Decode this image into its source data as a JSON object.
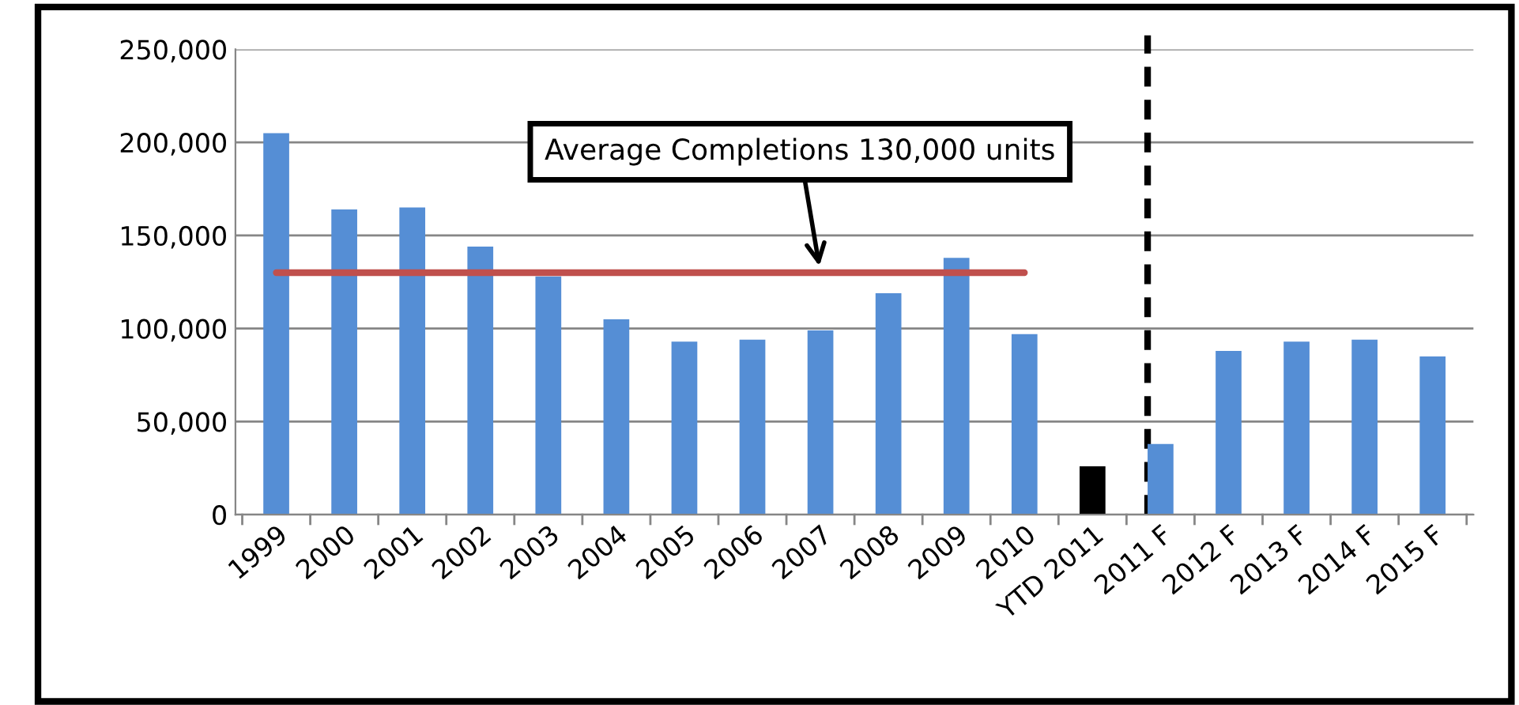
{
  "chart_data": {
    "type": "bar",
    "categories": [
      "1999",
      "2000",
      "2001",
      "2002",
      "2003",
      "2004",
      "2005",
      "2006",
      "2007",
      "2008",
      "2009",
      "2010",
      "YTD 2011",
      "2011 F",
      "2012 F",
      "2013 F",
      "2014 F",
      "2015 F"
    ],
    "series": [
      {
        "colors": [
          "#558ed5",
          "#558ed5",
          "#558ed5",
          "#558ed5",
          "#558ed5",
          "#558ed5",
          "#558ed5",
          "#558ed5",
          "#558ed5",
          "#558ed5",
          "#558ed5",
          "#558ed5",
          "#000000",
          "#558ed5",
          "#558ed5",
          "#558ed5",
          "#558ed5",
          "#558ed5"
        ],
        "values": [
          205000,
          164000,
          165000,
          144000,
          128000,
          105000,
          93000,
          94000,
          99000,
          119000,
          138000,
          97000,
          26000,
          38000,
          88000,
          93000,
          94000,
          85000
        ]
      },
      {
        "type": "line",
        "color": "#c0504d",
        "values": [
          130000,
          130000,
          130000,
          130000,
          130000,
          130000,
          130000,
          130000,
          130000,
          130000,
          130000,
          130000,
          null,
          null,
          null,
          null,
          null,
          null
        ]
      }
    ],
    "ylim": [
      0,
      250000
    ],
    "yticks": [
      {
        "value": 0,
        "label": "0"
      },
      {
        "value": 50000,
        "label": "50,000"
      },
      {
        "value": 100000,
        "label": "100,000"
      },
      {
        "value": 150000,
        "label": "150,000"
      },
      {
        "value": 200000,
        "label": "200,000"
      },
      {
        "value": 250000,
        "label": "250,000"
      }
    ],
    "grid": "y",
    "ref_lines": [
      {
        "axis": "x",
        "value": "2011 F",
        "color": "#000000",
        "line_style": "dashed"
      }
    ],
    "annotations": [
      {
        "text": "Average Completions 130,000 units",
        "x": "2007",
        "y": 130000
      }
    ]
  }
}
